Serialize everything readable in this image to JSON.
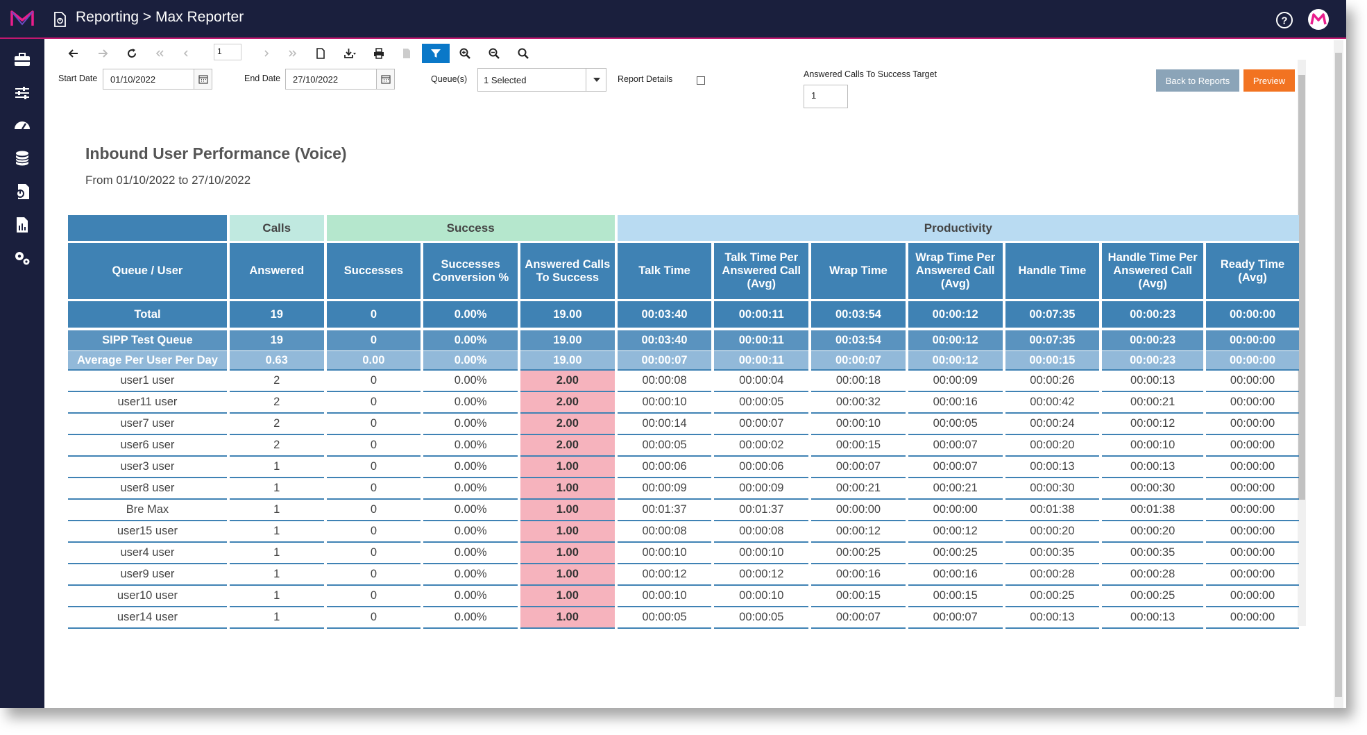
{
  "header": {
    "title": "Reporting > Max Reporter"
  },
  "sidebar": {
    "items": [
      "briefcase-icon",
      "sliders-icon",
      "dashboard-icon",
      "database-icon",
      "reports-icon",
      "chart-file-icon",
      "settings-icon"
    ]
  },
  "toolbar": {
    "page_number": "1"
  },
  "filters": {
    "start_date_label": "Start Date",
    "start_date": "01/10/2022",
    "end_date_label": "End Date",
    "end_date": "27/10/2022",
    "queues_label": "Queue(s)",
    "queues_value": "1 Selected",
    "report_details_label": "Report Details",
    "target_label": "Answered Calls To Success Target",
    "target_value": "1"
  },
  "buttons": {
    "back": "Back to Reports",
    "preview": "Preview"
  },
  "report": {
    "title": "Inbound User Performance (Voice)",
    "subtitle": "From 01/10/2022 to 27/10/2022"
  },
  "table": {
    "groups": {
      "calls": "Calls",
      "success": "Success",
      "productivity": "Productivity"
    },
    "columns": [
      "Queue / User",
      "Answered",
      "Successes",
      "Successes Conversion %",
      "Answered Calls To Success",
      "Talk Time",
      "Talk Time Per Answered Call (Avg)",
      "Wrap Time",
      "Wrap Time Per Answered Call (Avg)",
      "Handle Time",
      "Handle Time Per Answered Call (Avg)",
      "Ready Time (Avg)"
    ],
    "total": [
      "Total",
      "19",
      "0",
      "0.00%",
      "19.00",
      "00:03:40",
      "00:00:11",
      "00:03:54",
      "00:00:12",
      "00:07:35",
      "00:00:23",
      "00:00:00"
    ],
    "queue": [
      "SIPP Test Queue",
      "19",
      "0",
      "0.00%",
      "19.00",
      "00:03:40",
      "00:00:11",
      "00:03:54",
      "00:00:12",
      "00:07:35",
      "00:00:23",
      "00:00:00"
    ],
    "average": [
      "Average Per User Per Day",
      "0.63",
      "0.00",
      "0.00%",
      "19.00",
      "00:00:07",
      "00:00:11",
      "00:00:07",
      "00:00:12",
      "00:00:15",
      "00:00:23",
      "00:00:00"
    ],
    "users": [
      [
        "user1 user",
        "2",
        "0",
        "0.00%",
        "2.00",
        "00:00:08",
        "00:00:04",
        "00:00:18",
        "00:00:09",
        "00:00:26",
        "00:00:13",
        "00:00:00"
      ],
      [
        "user11 user",
        "2",
        "0",
        "0.00%",
        "2.00",
        "00:00:10",
        "00:00:05",
        "00:00:32",
        "00:00:16",
        "00:00:42",
        "00:00:21",
        "00:00:00"
      ],
      [
        "user7 user",
        "2",
        "0",
        "0.00%",
        "2.00",
        "00:00:14",
        "00:00:07",
        "00:00:10",
        "00:00:05",
        "00:00:24",
        "00:00:12",
        "00:00:00"
      ],
      [
        "user6 user",
        "2",
        "0",
        "0.00%",
        "2.00",
        "00:00:05",
        "00:00:02",
        "00:00:15",
        "00:00:07",
        "00:00:20",
        "00:00:10",
        "00:00:00"
      ],
      [
        "user3 user",
        "1",
        "0",
        "0.00%",
        "1.00",
        "00:00:06",
        "00:00:06",
        "00:00:07",
        "00:00:07",
        "00:00:13",
        "00:00:13",
        "00:00:00"
      ],
      [
        "user8 user",
        "1",
        "0",
        "0.00%",
        "1.00",
        "00:00:09",
        "00:00:09",
        "00:00:21",
        "00:00:21",
        "00:00:30",
        "00:00:30",
        "00:00:00"
      ],
      [
        "Bre Max",
        "1",
        "0",
        "0.00%",
        "1.00",
        "00:01:37",
        "00:01:37",
        "00:00:00",
        "00:00:00",
        "00:01:38",
        "00:01:38",
        "00:00:00"
      ],
      [
        "user15 user",
        "1",
        "0",
        "0.00%",
        "1.00",
        "00:00:08",
        "00:00:08",
        "00:00:12",
        "00:00:12",
        "00:00:20",
        "00:00:20",
        "00:00:00"
      ],
      [
        "user4 user",
        "1",
        "0",
        "0.00%",
        "1.00",
        "00:00:10",
        "00:00:10",
        "00:00:25",
        "00:00:25",
        "00:00:35",
        "00:00:35",
        "00:00:00"
      ],
      [
        "user9 user",
        "1",
        "0",
        "0.00%",
        "1.00",
        "00:00:12",
        "00:00:12",
        "00:00:16",
        "00:00:16",
        "00:00:28",
        "00:00:28",
        "00:00:00"
      ],
      [
        "user10 user",
        "1",
        "0",
        "0.00%",
        "1.00",
        "00:00:10",
        "00:00:10",
        "00:00:15",
        "00:00:15",
        "00:00:25",
        "00:00:25",
        "00:00:00"
      ],
      [
        "user14 user",
        "1",
        "0",
        "0.00%",
        "1.00",
        "00:00:05",
        "00:00:05",
        "00:00:07",
        "00:00:07",
        "00:00:13",
        "00:00:13",
        "00:00:00"
      ]
    ],
    "highlight_color": "#f6b3bd",
    "header_color": "#3f82b4"
  },
  "colors": {
    "topbar": "#1a1f3d",
    "accent": "#c2186f",
    "preview_button": "#f27321",
    "back_button": "#8ba4b8",
    "filter_active": "#0a78c8"
  }
}
